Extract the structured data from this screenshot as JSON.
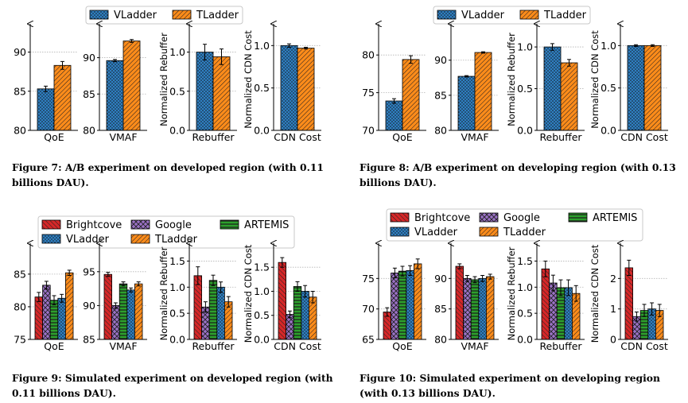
{
  "colors": {
    "VLadder": "#2f7fc1",
    "TLadder": "#ff8c1a",
    "Brightcove": "#d62728",
    "Google": "#9b72c6",
    "ARTEMIS": "#2ca02c"
  },
  "figures": [
    {
      "id": "fig7",
      "caption": "Figure 7: A/B experiment on developed region (with 0.11 billions DAU).",
      "legend": [
        "VLadder",
        "TLadder"
      ]
    },
    {
      "id": "fig8",
      "caption": "Figure 8: A/B experiment on developing region (with 0.13 billions DAU).",
      "legend": [
        "VLadder",
        "TLadder"
      ]
    },
    {
      "id": "fig9",
      "caption": "Figure 9: Simulated experiment on developed region (with 0.11 billions DAU).",
      "legend": [
        "Brightcove",
        "Google",
        "ARTEMIS",
        "VLadder",
        "TLadder"
      ]
    },
    {
      "id": "fig10",
      "caption": "Figure 10: Simulated experiment on developing region (with 0.13 billions DAU).",
      "legend": [
        "Brightcove",
        "Google",
        "ARTEMIS",
        "VLadder",
        "TLadder"
      ]
    }
  ],
  "chart_data": [
    {
      "figure": "fig7",
      "type": "bar",
      "xlabel": "QoE",
      "ylabel": "",
      "ylim": [
        80,
        93
      ],
      "yticks": [
        80,
        85,
        90
      ],
      "series": [
        {
          "name": "VLadder",
          "values": [
            85.3
          ],
          "err": [
            0.35
          ]
        },
        {
          "name": "TLadder",
          "values": [
            88.3
          ],
          "err": [
            0.5
          ]
        }
      ]
    },
    {
      "figure": "fig7",
      "type": "bar",
      "xlabel": "VMAF",
      "ylabel": "",
      "ylim": [
        80,
        94
      ],
      "yticks": [
        80,
        85,
        90
      ],
      "series": [
        {
          "name": "VLadder",
          "values": [
            89.6
          ],
          "err": [
            0.15
          ]
        },
        {
          "name": "TLadder",
          "values": [
            92.3
          ],
          "err": [
            0.2
          ]
        }
      ]
    },
    {
      "figure": "fig7",
      "type": "bar",
      "xlabel": "Rebuffer",
      "ylabel": "Normalized Rebuffer",
      "ylim": [
        0,
        1.3
      ],
      "yticks": [
        "0.0",
        "0.5",
        "1.0"
      ],
      "series": [
        {
          "name": "VLadder",
          "values": [
            1.0
          ],
          "err": [
            0.1
          ]
        },
        {
          "name": "TLadder",
          "values": [
            0.94
          ],
          "err": [
            0.1
          ]
        }
      ]
    },
    {
      "figure": "fig7",
      "type": "bar",
      "xlabel": "CDN Cost",
      "ylabel": "Normalized CDN Cost",
      "ylim": [
        0,
        1.2
      ],
      "yticks": [
        "0.0",
        "0.5",
        "1.0"
      ],
      "series": [
        {
          "name": "VLadder",
          "values": [
            1.0
          ],
          "err": [
            0.02
          ]
        },
        {
          "name": "TLadder",
          "values": [
            0.97
          ],
          "err": [
            0.01
          ]
        }
      ]
    },
    {
      "figure": "fig8",
      "type": "bar",
      "xlabel": "QoE",
      "ylabel": "",
      "ylim": [
        70,
        83.5
      ],
      "yticks": [
        70,
        75,
        80
      ],
      "series": [
        {
          "name": "VLadder",
          "values": [
            73.9
          ],
          "err": [
            0.3
          ]
        },
        {
          "name": "TLadder",
          "values": [
            79.4
          ],
          "err": [
            0.5
          ]
        }
      ]
    },
    {
      "figure": "fig8",
      "type": "bar",
      "xlabel": "VMAF",
      "ylabel": "",
      "ylim": [
        80,
        94.5
      ],
      "yticks": [
        80,
        85,
        90
      ],
      "series": [
        {
          "name": "VLadder",
          "values": [
            87.7
          ],
          "err": [
            0.1
          ]
        },
        {
          "name": "TLadder",
          "values": [
            91.1
          ],
          "err": [
            0.1
          ]
        }
      ]
    },
    {
      "figure": "fig8",
      "type": "bar",
      "xlabel": "Rebuffer",
      "ylabel": "Normalized Rebuffer",
      "ylim": [
        0,
        1.22
      ],
      "yticks": [
        "0.0",
        "0.5",
        "1.0"
      ],
      "series": [
        {
          "name": "VLadder",
          "values": [
            1.0
          ],
          "err": [
            0.04
          ]
        },
        {
          "name": "TLadder",
          "values": [
            0.81
          ],
          "err": [
            0.04
          ]
        }
      ]
    },
    {
      "figure": "fig8",
      "type": "bar",
      "xlabel": "CDN Cost",
      "ylabel": "Normalized CDN Cost",
      "ylim": [
        0,
        1.2
      ],
      "yticks": [
        "0.0",
        "0.5",
        "1.0"
      ],
      "series": [
        {
          "name": "VLadder",
          "values": [
            1.0
          ],
          "err": [
            0.01
          ]
        },
        {
          "name": "TLadder",
          "values": [
            1.0
          ],
          "err": [
            0.01
          ]
        }
      ]
    },
    {
      "figure": "fig9",
      "type": "bar",
      "xlabel": "QoE",
      "ylabel": "",
      "ylim": [
        75,
        89
      ],
      "yticks": [
        75,
        80,
        85
      ],
      "series": [
        {
          "name": "Brightcove",
          "values": [
            81.5
          ],
          "err": [
            0.7
          ]
        },
        {
          "name": "Google",
          "values": [
            83.3
          ],
          "err": [
            0.6
          ]
        },
        {
          "name": "ARTEMIS",
          "values": [
            81.0
          ],
          "err": [
            0.7
          ]
        },
        {
          "name": "VLadder",
          "values": [
            81.3
          ],
          "err": [
            0.6
          ]
        },
        {
          "name": "TLadder",
          "values": [
            85.2
          ],
          "err": [
            0.4
          ]
        }
      ]
    },
    {
      "figure": "fig9",
      "type": "bar",
      "xlabel": "VMAF",
      "ylabel": "",
      "ylim": [
        85,
        98.5
      ],
      "yticks": [
        85,
        90,
        95
      ],
      "series": [
        {
          "name": "Brightcove",
          "values": [
            94.6
          ],
          "err": [
            0.3
          ]
        },
        {
          "name": "Google",
          "values": [
            90.0
          ],
          "err": [
            0.4
          ]
        },
        {
          "name": "ARTEMIS",
          "values": [
            93.2
          ],
          "err": [
            0.3
          ]
        },
        {
          "name": "VLadder",
          "values": [
            92.3
          ],
          "err": [
            0.3
          ]
        },
        {
          "name": "TLadder",
          "values": [
            93.2
          ],
          "err": [
            0.3
          ]
        }
      ]
    },
    {
      "figure": "fig9",
      "type": "bar",
      "xlabel": "Rebuffer",
      "ylabel": "Normalized Rebuffer",
      "ylim": [
        0,
        1.75
      ],
      "yticks": [
        "0.0",
        "0.5",
        "1.0",
        "1.5"
      ],
      "series": [
        {
          "name": "Brightcove",
          "values": [
            1.22
          ],
          "err": [
            0.17
          ]
        },
        {
          "name": "Google",
          "values": [
            0.62
          ],
          "err": [
            0.1
          ]
        },
        {
          "name": "ARTEMIS",
          "values": [
            1.13
          ],
          "err": [
            0.1
          ]
        },
        {
          "name": "VLadder",
          "values": [
            1.0
          ],
          "err": [
            0.1
          ]
        },
        {
          "name": "TLadder",
          "values": [
            0.72
          ],
          "err": [
            0.1
          ]
        }
      ]
    },
    {
      "figure": "fig9",
      "type": "bar",
      "xlabel": "CDN Cost",
      "ylabel": "Normalized CDN Cost",
      "ylim": [
        0,
        1.9
      ],
      "yticks": [
        "0.0",
        "0.5",
        "1.0",
        "1.5"
      ],
      "series": [
        {
          "name": "Brightcove",
          "values": [
            1.6
          ],
          "err": [
            0.1
          ]
        },
        {
          "name": "Google",
          "values": [
            0.52
          ],
          "err": [
            0.07
          ]
        },
        {
          "name": "ARTEMIS",
          "values": [
            1.1
          ],
          "err": [
            0.1
          ]
        },
        {
          "name": "VLadder",
          "values": [
            1.0
          ],
          "err": [
            0.12
          ]
        },
        {
          "name": "TLadder",
          "values": [
            0.88
          ],
          "err": [
            0.12
          ]
        }
      ]
    },
    {
      "figure": "fig10",
      "type": "bar",
      "xlabel": "QoE",
      "ylabel": "",
      "ylim": [
        65,
        80
      ],
      "yticks": [
        65,
        70,
        75
      ],
      "series": [
        {
          "name": "Brightcove",
          "values": [
            69.5
          ],
          "err": [
            0.7
          ]
        },
        {
          "name": "Google",
          "values": [
            75.9
          ],
          "err": [
            0.8
          ]
        },
        {
          "name": "ARTEMIS",
          "values": [
            76.2
          ],
          "err": [
            0.8
          ]
        },
        {
          "name": "VLadder",
          "values": [
            76.3
          ],
          "err": [
            0.8
          ]
        },
        {
          "name": "TLadder",
          "values": [
            77.4
          ],
          "err": [
            0.8
          ]
        }
      ]
    },
    {
      "figure": "fig10",
      "type": "bar",
      "xlabel": "VMAF",
      "ylabel": "",
      "ylim": [
        80,
        95
      ],
      "yticks": [
        80,
        85,
        90
      ],
      "series": [
        {
          "name": "Brightcove",
          "values": [
            92.0
          ],
          "err": [
            0.4
          ]
        },
        {
          "name": "Google",
          "values": [
            90.0
          ],
          "err": [
            0.5
          ]
        },
        {
          "name": "ARTEMIS",
          "values": [
            89.8
          ],
          "err": [
            0.5
          ]
        },
        {
          "name": "VLadder",
          "values": [
            90.0
          ],
          "err": [
            0.5
          ]
        },
        {
          "name": "TLadder",
          "values": [
            90.3
          ],
          "err": [
            0.4
          ]
        }
      ]
    },
    {
      "figure": "fig10",
      "type": "bar",
      "xlabel": "Rebuffer",
      "ylabel": "Normalized Rebuffer",
      "ylim": [
        0,
        1.75
      ],
      "yticks": [
        "0.0",
        "0.5",
        "1.0",
        "1.5"
      ],
      "series": [
        {
          "name": "Brightcove",
          "values": [
            1.35
          ],
          "err": [
            0.15
          ]
        },
        {
          "name": "Google",
          "values": [
            1.08
          ],
          "err": [
            0.15
          ]
        },
        {
          "name": "ARTEMIS",
          "values": [
            0.99
          ],
          "err": [
            0.15
          ]
        },
        {
          "name": "VLadder",
          "values": [
            0.99
          ],
          "err": [
            0.15
          ]
        },
        {
          "name": "TLadder",
          "values": [
            0.88
          ],
          "err": [
            0.15
          ]
        }
      ]
    },
    {
      "figure": "fig10",
      "type": "bar",
      "xlabel": "CDN Cost",
      "ylabel": "Normalized CDN Cost",
      "ylim": [
        0,
        3.0
      ],
      "yticks": [
        "0",
        "1",
        "2"
      ],
      "series": [
        {
          "name": "Brightcove",
          "values": [
            2.35
          ],
          "err": [
            0.25
          ]
        },
        {
          "name": "Google",
          "values": [
            0.75
          ],
          "err": [
            0.15
          ]
        },
        {
          "name": "ARTEMIS",
          "values": [
            0.95
          ],
          "err": [
            0.2
          ]
        },
        {
          "name": "VLadder",
          "values": [
            1.0
          ],
          "err": [
            0.2
          ]
        },
        {
          "name": "TLadder",
          "values": [
            0.95
          ],
          "err": [
            0.2
          ]
        }
      ]
    }
  ]
}
